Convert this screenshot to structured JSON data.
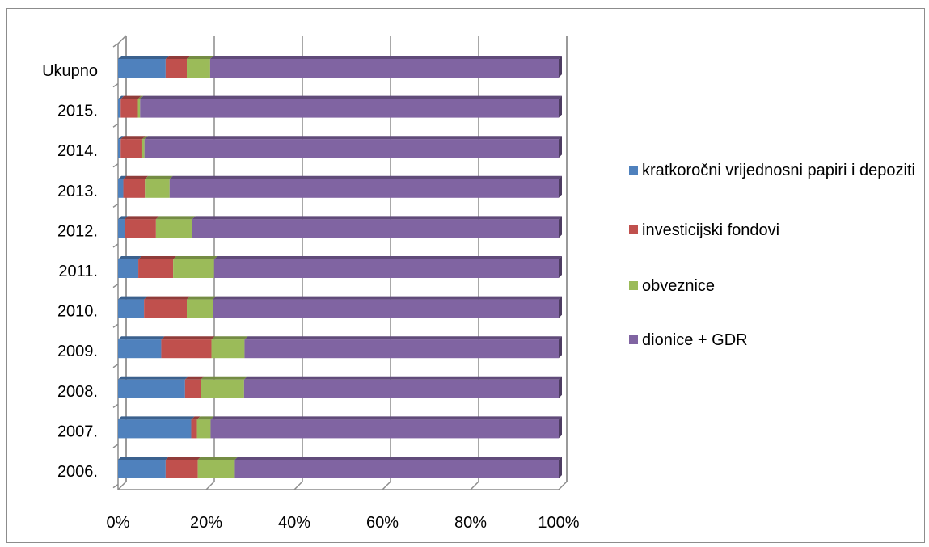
{
  "chart_data": {
    "type": "bar",
    "orientation": "horizontal",
    "stacked": "percent",
    "categories": [
      "Ukupno",
      "2015.",
      "2014.",
      "2013.",
      "2012.",
      "2011.",
      "2010.",
      "2009.",
      "2008.",
      "2007.",
      "2006."
    ],
    "series": [
      {
        "name": "kratkoročni vrijednosni papiri i depoziti",
        "color": "#4F81BD",
        "values": [
          10.8,
          0.6,
          0.6,
          1.2,
          1.5,
          4.6,
          5.9,
          9.8,
          15.2,
          16.6,
          10.8
        ]
      },
      {
        "name": "investicijski fondovi",
        "color": "#C0504D",
        "values": [
          4.8,
          3.9,
          4.9,
          4.9,
          7.1,
          7.9,
          9.7,
          11.4,
          3.6,
          1.3,
          7.3
        ]
      },
      {
        "name": "obveznice",
        "color": "#9BBB59",
        "values": [
          5.3,
          0.5,
          0.5,
          5.6,
          8.2,
          9.3,
          5.9,
          7.5,
          9.8,
          3.1,
          8.4
        ]
      },
      {
        "name": "dionice + GDR",
        "color": "#8064A2",
        "values": [
          79.1,
          95.0,
          94.0,
          88.3,
          83.2,
          78.2,
          78.5,
          71.3,
          71.4,
          79.0,
          73.5
        ]
      }
    ],
    "x_ticks": [
      "0%",
      "20%",
      "40%",
      "60%",
      "80%",
      "100%"
    ],
    "xlim": [
      0,
      100
    ],
    "grid": true,
    "legend": "right"
  }
}
